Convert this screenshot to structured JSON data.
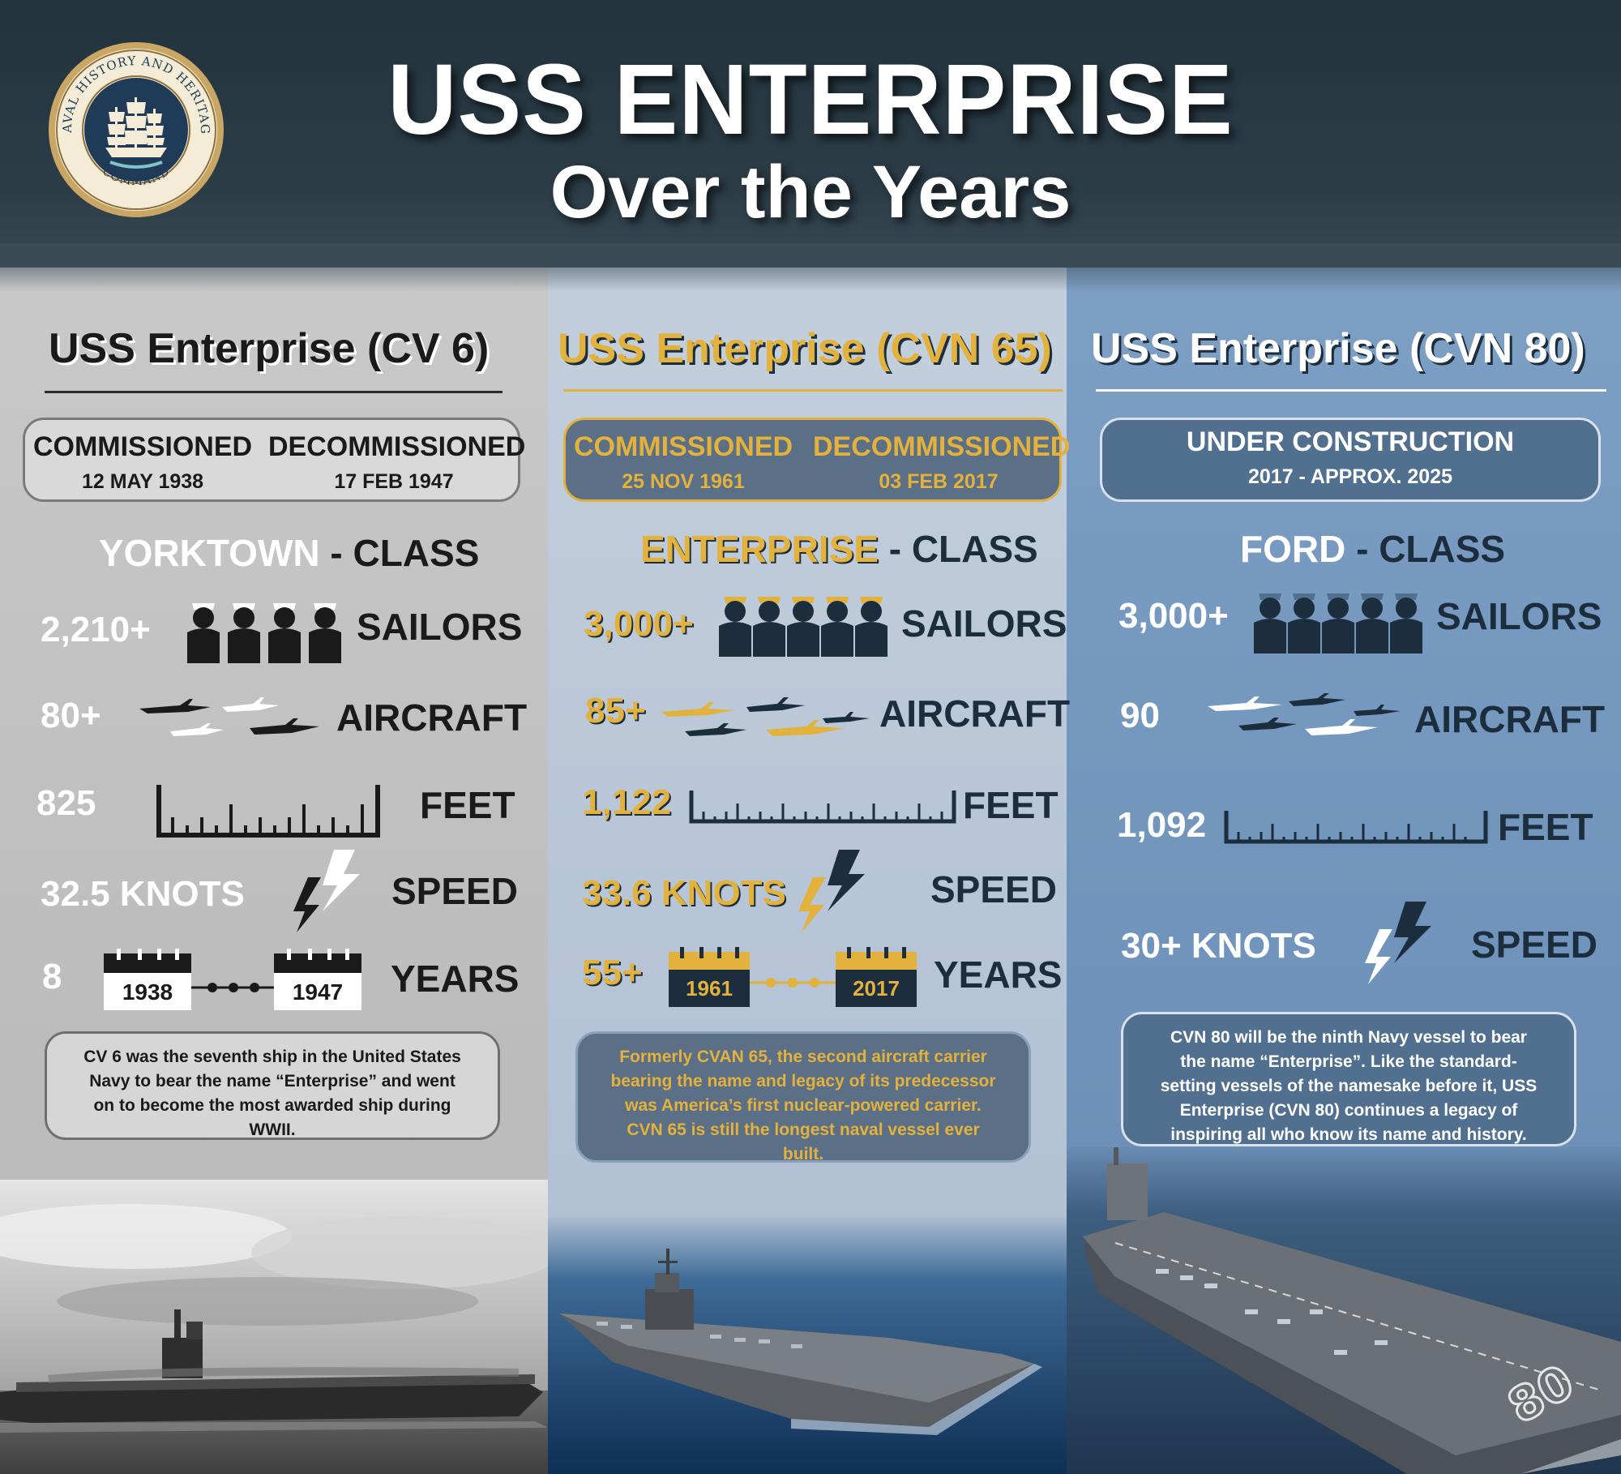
{
  "header": {
    "title_line1": "USS ENTERPRISE",
    "title_line2": "Over the Years",
    "seal_text_top": "NAVAL HISTORY AND HERITAGE",
    "seal_text_bottom": "COMMAND"
  },
  "colors": {
    "dark_navy": "#1c2e3d",
    "gold": "#e3b23c",
    "white": "#ffffff",
    "black": "#1a1a1a"
  },
  "ships": [
    {
      "name": "USS Enterprise (CV 6)",
      "status_left_label": "COMMISSIONED",
      "status_left_value": "12 MAY 1938",
      "status_right_label": "DECOMMISSIONED",
      "status_right_value": "17 FEB 1947",
      "class_name": "YORKTOWN",
      "class_suffix": "- CLASS",
      "sailors": "2,210+",
      "sailors_label": "SAILORS",
      "aircraft": "80+",
      "aircraft_label": "AIRCRAFT",
      "feet": "825",
      "feet_label": "FEET",
      "speed": "32.5 KNOTS",
      "speed_label": "SPEED",
      "years": "8",
      "year_start": "1938",
      "year_end": "1947",
      "years_label": "YEARS",
      "note": "CV 6 was the seventh ship in the United States Navy to bear the name “Enterprise” and went on to become the most awarded ship during WWII."
    },
    {
      "name": "USS Enterprise (CVN 65)",
      "status_left_label": "COMMISSIONED",
      "status_left_value": "25 NOV 1961",
      "status_right_label": "DECOMMISSIONED",
      "status_right_value": "03 FEB 2017",
      "class_name": "ENTERPRISE",
      "class_suffix": "- CLASS",
      "sailors": "3,000+",
      "sailors_label": "SAILORS",
      "aircraft": "85+",
      "aircraft_label": "AIRCRAFT",
      "feet": "1,122",
      "feet_label": "FEET",
      "speed": "33.6 KNOTS",
      "speed_label": "SPEED",
      "years": "55+",
      "year_start": "1961",
      "year_end": "2017",
      "years_label": "YEARS",
      "note": "Formerly CVAN 65, the second aircraft carrier bearing the name and legacy of its predecessor was America’s first nuclear-powered carrier. CVN 65 is still the longest naval vessel ever built."
    },
    {
      "name": "USS Enterprise (CVN 80)",
      "status_label": "UNDER CONSTRUCTION",
      "status_value": "2017 - APPROX. 2025",
      "class_name": "FORD",
      "class_suffix": "- CLASS",
      "sailors": "3,000+",
      "sailors_label": "SAILORS",
      "aircraft": "90",
      "aircraft_label": "AIRCRAFT",
      "feet": "1,092",
      "feet_label": "FEET",
      "speed": "30+ KNOTS",
      "speed_label": "SPEED",
      "hull_number": "80",
      "note": "CVN 80 will be the ninth Navy vessel to bear the name “Enterprise”. Like the standard-setting vessels of the namesake before it, USS Enterprise (CVN 80) continues a legacy of inspiring all who know its name and history."
    }
  ]
}
